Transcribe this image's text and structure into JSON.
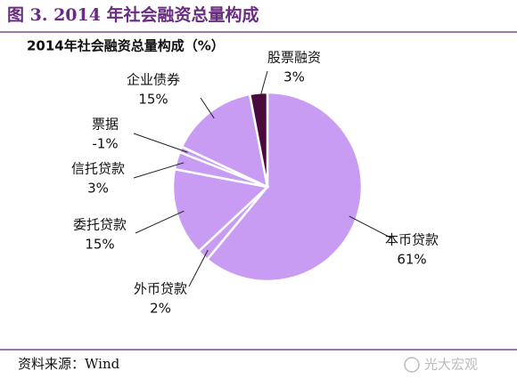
{
  "header": {
    "title": "图 3. 2014 年社会融资总量构成"
  },
  "chart_data": {
    "type": "pie",
    "title": "2014年社会融资总量构成（%）",
    "categories": [
      "本币贷款",
      "外币贷款",
      "委托贷款",
      "信托贷款",
      "票据",
      "企业债券",
      "股票融资"
    ],
    "values": [
      61,
      2,
      15,
      3,
      -1,
      15,
      3
    ],
    "value_labels": [
      "61%",
      "2%",
      "15%",
      "3%",
      "-1%",
      "15%",
      "3%"
    ],
    "colors": [
      "#c79cf2",
      "#c79cf2",
      "#c79cf2",
      "#c79cf2",
      "#c79cf2",
      "#c79cf2",
      "#4b0a3e"
    ]
  },
  "footer": {
    "source": "资料来源：Wind",
    "watermark": "光大宏观"
  }
}
